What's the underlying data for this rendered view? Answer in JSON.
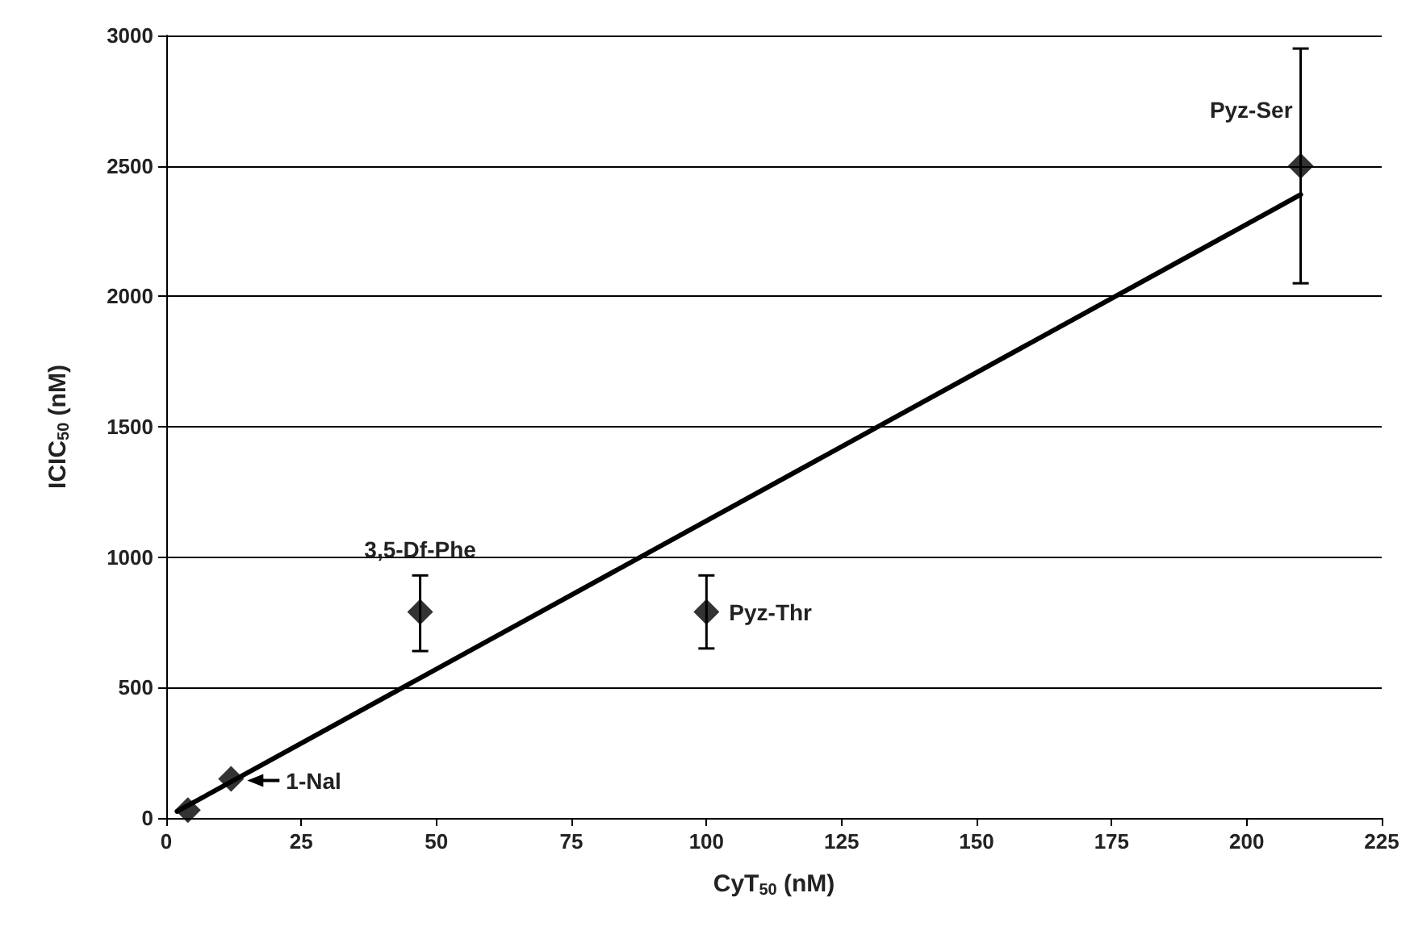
{
  "chart_data": {
    "type": "scatter",
    "xlabel": "CyT$_{50}$ (nM)",
    "ylabel": "ICIC$_{50}$ (nM)",
    "xlim": [
      0,
      225
    ],
    "xticks": [
      0,
      25,
      50,
      75,
      100,
      125,
      150,
      175,
      200,
      225
    ],
    "ylim": [
      0,
      3000
    ],
    "yticks": [
      0,
      500,
      1000,
      1500,
      2000,
      2500,
      3000
    ],
    "grid": "y",
    "marker": "diamond",
    "series": [
      {
        "color": "#000000",
        "x": [
          4,
          12,
          47,
          100,
          210
        ],
        "values": [
          30,
          150,
          790,
          790,
          2500
        ],
        "errors": [
          null,
          null,
          [
            640,
            930
          ],
          [
            650,
            930
          ],
          [
            2050,
            2950
          ]
        ]
      },
      {
        "type": "line",
        "color": "#000000",
        "marker": "none",
        "line_style": "solid",
        "x": [
          2,
          210
        ],
        "values": [
          25,
          2390
        ]
      }
    ],
    "annotations": [
      {
        "text": "Pyz-Ser",
        "x": 210,
        "y": 2500
      },
      {
        "text": "3,5-Df-Phe",
        "x": 47,
        "y": 790
      },
      {
        "text": "Pyz-Thr",
        "x": 100,
        "y": 790
      },
      {
        "text": "1-Nal",
        "x": 12,
        "y": 150
      }
    ]
  }
}
